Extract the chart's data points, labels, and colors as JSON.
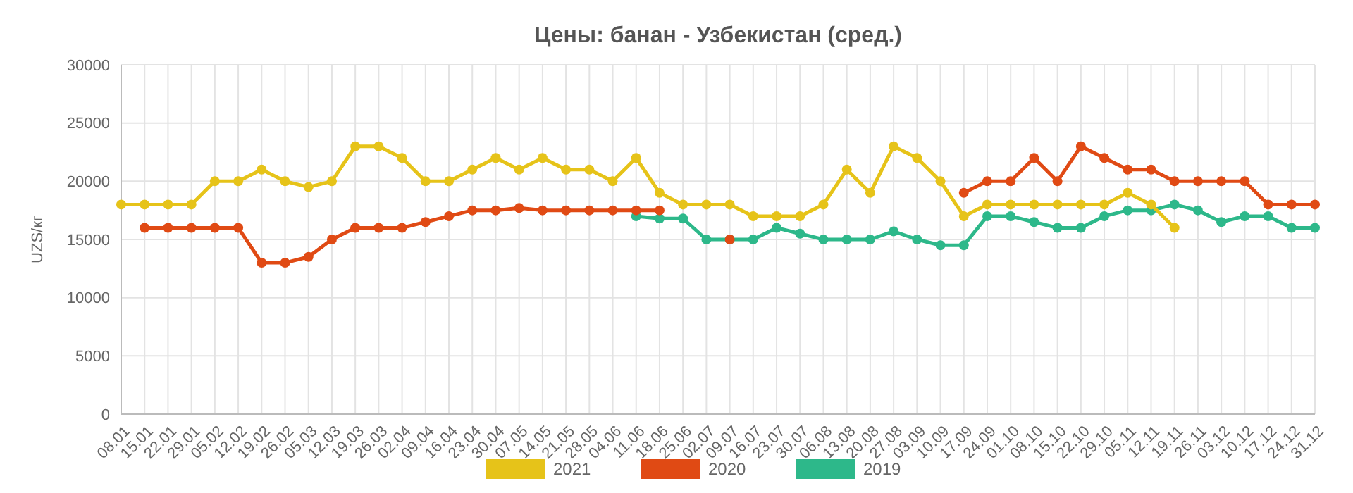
{
  "chart_data": {
    "type": "line",
    "title": "Цены: банан - Узбекистан (сред.)",
    "ylabel": "UZS/кг",
    "categories": [
      "08.01",
      "15.01",
      "22.01",
      "29.01",
      "05.02",
      "12.02",
      "19.02",
      "26.02",
      "05.03",
      "12.03",
      "19.03",
      "26.03",
      "02.04",
      "09.04",
      "16.04",
      "23.04",
      "30.04",
      "07.05",
      "14.05",
      "21.05",
      "28.05",
      "04.06",
      "11.06",
      "18.06",
      "25.06",
      "02.07",
      "09.07",
      "16.07",
      "23.07",
      "30.07",
      "06.08",
      "13.08",
      "20.08",
      "27.08",
      "03.09",
      "10.09",
      "17.09",
      "24.09",
      "01.10",
      "08.10",
      "15.10",
      "22.10",
      "29.10",
      "05.11",
      "12.11",
      "19.11",
      "26.11",
      "03.12",
      "10.12",
      "17.12",
      "24.12",
      "31.12"
    ],
    "series": [
      {
        "name": "2021",
        "color": "#e6c319",
        "values": [
          18000,
          18000,
          18000,
          18000,
          20000,
          20000,
          21000,
          20000,
          19500,
          20000,
          23000,
          23000,
          22000,
          20000,
          20000,
          21000,
          22000,
          21000,
          22000,
          21000,
          21000,
          20000,
          22000,
          19000,
          18000,
          18000,
          18000,
          17000,
          17000,
          17000,
          18000,
          21000,
          19000,
          23000,
          22000,
          20000,
          17000,
          18000,
          18000,
          18000,
          18000,
          18000,
          18000,
          19000,
          18000,
          16000,
          null,
          null,
          null,
          null,
          null,
          null
        ]
      },
      {
        "name": "2020",
        "color": "#e04a14",
        "values": [
          null,
          16000,
          16000,
          16000,
          16000,
          16000,
          13000,
          13000,
          13500,
          15000,
          16000,
          16000,
          16000,
          16500,
          17000,
          17500,
          17500,
          17700,
          17500,
          17500,
          17500,
          17500,
          17500,
          17500,
          null,
          null,
          15000,
          null,
          null,
          null,
          null,
          null,
          null,
          null,
          null,
          null,
          19000,
          20000,
          20000,
          22000,
          20000,
          23000,
          22000,
          21000,
          21000,
          20000,
          20000,
          20000,
          20000,
          18000,
          18000,
          18000
        ]
      },
      {
        "name": "2019",
        "color": "#2db88a",
        "values": [
          null,
          null,
          null,
          null,
          null,
          null,
          null,
          null,
          null,
          null,
          null,
          null,
          null,
          null,
          null,
          null,
          null,
          null,
          null,
          null,
          null,
          null,
          17000,
          16800,
          16800,
          15000,
          15000,
          15000,
          16000,
          15500,
          15000,
          15000,
          15000,
          15700,
          15000,
          14500,
          14500,
          17000,
          17000,
          16500,
          16000,
          16000,
          17000,
          17500,
          17500,
          18000,
          17500,
          16500,
          17000,
          17000,
          16000,
          16000
        ]
      }
    ],
    "ylim": [
      0,
      30000
    ],
    "yticks": [
      0,
      5000,
      10000,
      15000,
      20000,
      25000,
      30000
    ],
    "grid": true,
    "legend": "bottom",
    "marker": "circle",
    "line_style": "solid"
  }
}
